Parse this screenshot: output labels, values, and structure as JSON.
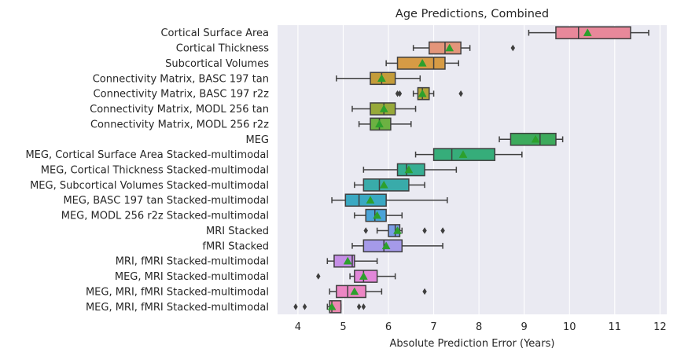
{
  "chart_data": {
    "type": "box",
    "title": "Age Predictions, Combined",
    "xlabel": "Absolute Prediction Error (Years)",
    "ylabel": "",
    "xlim": [
      3.55,
      12.15
    ],
    "xticks": [
      4,
      5,
      6,
      7,
      8,
      9,
      10,
      11,
      12
    ],
    "grid": true,
    "legend": "none",
    "mean_marker": "triangle",
    "mean_color": "#2ca02c",
    "line_color": "#3f3f3f",
    "background": "#eaeaf2",
    "categories": [
      "Cortical Surface Area",
      "Cortical Thickness",
      "Subcortical Volumes",
      "Connectivity Matrix, BASC 197 tan",
      "Connectivity Matrix, BASC 197 r2z",
      "Connectivity Matrix, MODL 256 tan",
      "Connectivity Matrix, MODL 256 r2z",
      "MEG",
      "MEG, Cortical Surface Area Stacked-multimodal",
      "MEG, Cortical Thickness Stacked-multimodal",
      "MEG, Subcortical Volumes Stacked-multimodal",
      "MEG, BASC 197 tan Stacked-multimodal",
      "MEG, MODL 256 r2z Stacked-multimodal",
      "MRI Stacked",
      "fMRI Stacked",
      "MRI, fMRI Stacked-multimodal",
      "MEG, MRI Stacked-multimodal",
      "MEG, MRI, fMRI Stacked-multimodal",
      "MEG, MRI, fMRI Stacked-multimodal"
    ],
    "boxes": [
      {
        "whislo": 9.1,
        "q1": 9.7,
        "med": 10.2,
        "q3": 11.35,
        "whishi": 11.75,
        "mean": 10.4,
        "fliers": [],
        "color": "#e8889a"
      },
      {
        "whislo": 6.55,
        "q1": 6.9,
        "med": 7.25,
        "q3": 7.6,
        "whishi": 7.8,
        "mean": 7.35,
        "fliers": [
          8.75
        ],
        "color": "#e3957a"
      },
      {
        "whislo": 5.95,
        "q1": 6.2,
        "med": 7.0,
        "q3": 7.25,
        "whishi": 7.55,
        "mean": 6.75,
        "fliers": [],
        "color": "#d69b45"
      },
      {
        "whislo": 4.85,
        "q1": 5.6,
        "med": 5.85,
        "q3": 6.15,
        "whishi": 6.7,
        "mean": 5.85,
        "fliers": [],
        "color": "#c49c3a"
      },
      {
        "whislo": 6.55,
        "q1": 6.65,
        "med": 6.75,
        "q3": 6.9,
        "whishi": 7.0,
        "mean": 6.75,
        "fliers": [
          6.2,
          6.25,
          7.6
        ],
        "color": "#b0a33a"
      },
      {
        "whislo": 5.2,
        "q1": 5.6,
        "med": 5.9,
        "q3": 6.15,
        "whishi": 6.6,
        "mean": 5.9,
        "fliers": [],
        "color": "#97a93a"
      },
      {
        "whislo": 5.35,
        "q1": 5.6,
        "med": 5.8,
        "q3": 6.05,
        "whishi": 6.5,
        "mean": 5.8,
        "fliers": [],
        "color": "#6cb142"
      },
      {
        "whislo": 8.45,
        "q1": 8.7,
        "med": 9.35,
        "q3": 9.7,
        "whishi": 9.85,
        "mean": 9.25,
        "fliers": [],
        "color": "#3daa5c"
      },
      {
        "whislo": 6.6,
        "q1": 7.0,
        "med": 7.4,
        "q3": 8.35,
        "whishi": 8.95,
        "mean": 7.65,
        "fliers": [],
        "color": "#36ad7a"
      },
      {
        "whislo": 5.45,
        "q1": 6.2,
        "med": 6.4,
        "q3": 6.8,
        "whishi": 7.5,
        "mean": 6.45,
        "fliers": [],
        "color": "#37ae93"
      },
      {
        "whislo": 5.25,
        "q1": 5.45,
        "med": 5.8,
        "q3": 6.45,
        "whishi": 6.8,
        "mean": 5.9,
        "fliers": [],
        "color": "#39abaa"
      },
      {
        "whislo": 4.75,
        "q1": 5.05,
        "med": 5.35,
        "q3": 5.95,
        "whishi": 7.3,
        "mean": 5.6,
        "fliers": [],
        "color": "#3aa8c2"
      },
      {
        "whislo": 5.25,
        "q1": 5.5,
        "med": 5.7,
        "q3": 5.95,
        "whishi": 6.3,
        "mean": 5.75,
        "fliers": [],
        "color": "#4aa3d8"
      },
      {
        "whislo": 5.75,
        "q1": 6.0,
        "med": 6.15,
        "q3": 6.25,
        "whishi": 6.3,
        "mean": 6.2,
        "fliers": [
          5.5,
          6.8,
          7.2
        ],
        "color": "#7b9de6"
      },
      {
        "whislo": 5.2,
        "q1": 5.45,
        "med": 5.9,
        "q3": 6.3,
        "whishi": 7.2,
        "mean": 5.95,
        "fliers": [],
        "color": "#a59ae9"
      },
      {
        "whislo": 4.65,
        "q1": 4.8,
        "med": 5.2,
        "q3": 5.25,
        "whishi": 5.75,
        "mean": 5.1,
        "fliers": [],
        "color": "#c58ee6"
      },
      {
        "whislo": 5.15,
        "q1": 5.25,
        "med": 5.45,
        "q3": 5.75,
        "whishi": 6.15,
        "mean": 5.45,
        "fliers": [
          4.45
        ],
        "color": "#e287d9"
      },
      {
        "whislo": 4.7,
        "q1": 4.85,
        "med": 5.1,
        "q3": 5.5,
        "whishi": 5.85,
        "mean": 5.25,
        "fliers": [
          6.8
        ],
        "color": "#ec86c4"
      },
      {
        "whislo": 4.65,
        "q1": 4.7,
        "med": 4.75,
        "q3": 4.95,
        "whishi": 4.95,
        "mean": 4.75,
        "fliers": [
          3.95,
          4.15,
          5.35,
          5.45
        ],
        "color": "#ed87b1"
      }
    ]
  }
}
